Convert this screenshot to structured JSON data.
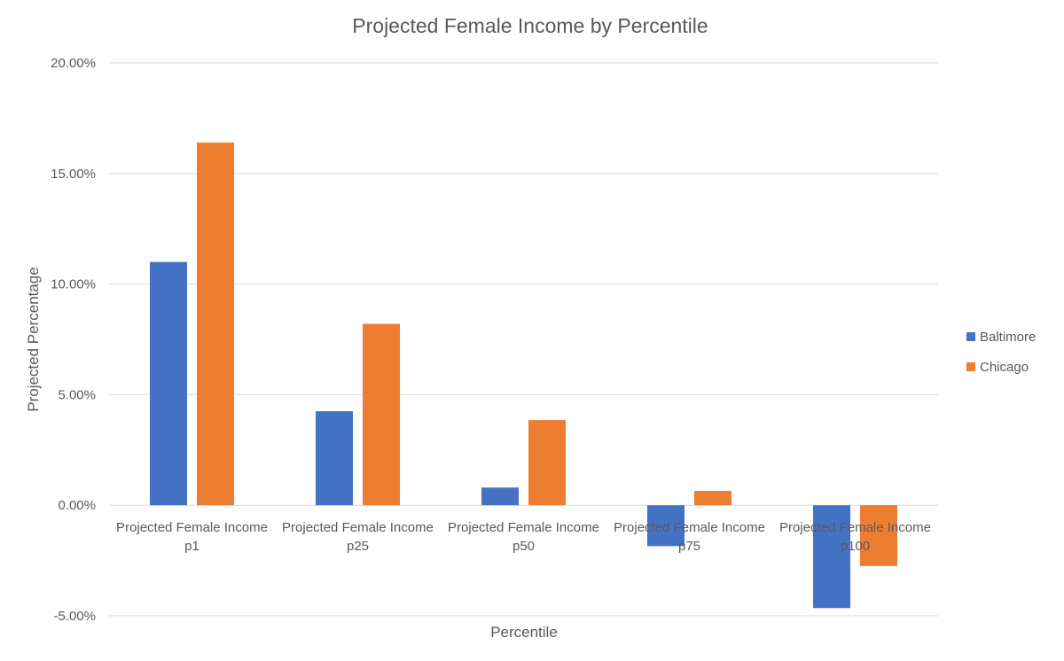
{
  "chart_data": {
    "type": "bar",
    "title": "Projected Female Income by Percentile",
    "xlabel": "Percentile",
    "ylabel": "Projected Percentage",
    "categories": [
      [
        "Projected Female Income",
        "p1"
      ],
      [
        "Projected Female Income",
        "p25"
      ],
      [
        "Projected Female Income",
        "p50"
      ],
      [
        "Projected Female Income",
        "p75"
      ],
      [
        "Projected Female Income",
        "p100"
      ]
    ],
    "series": [
      {
        "name": "Baltimore",
        "color": "#4472C4",
        "values": [
          11.0,
          4.25,
          0.8,
          -1.85,
          -4.65
        ]
      },
      {
        "name": "Chicago",
        "color": "#ED7D31",
        "values": [
          16.4,
          8.2,
          3.85,
          0.65,
          -2.75
        ]
      }
    ],
    "ylim": [
      -5,
      20
    ],
    "yticks": [
      -5,
      0,
      5,
      10,
      15,
      20
    ],
    "ytick_labels": [
      "-5.00%",
      "0.00%",
      "5.00%",
      "10.00%",
      "15.00%",
      "20.00%"
    ],
    "grid": true,
    "legend": "right"
  }
}
